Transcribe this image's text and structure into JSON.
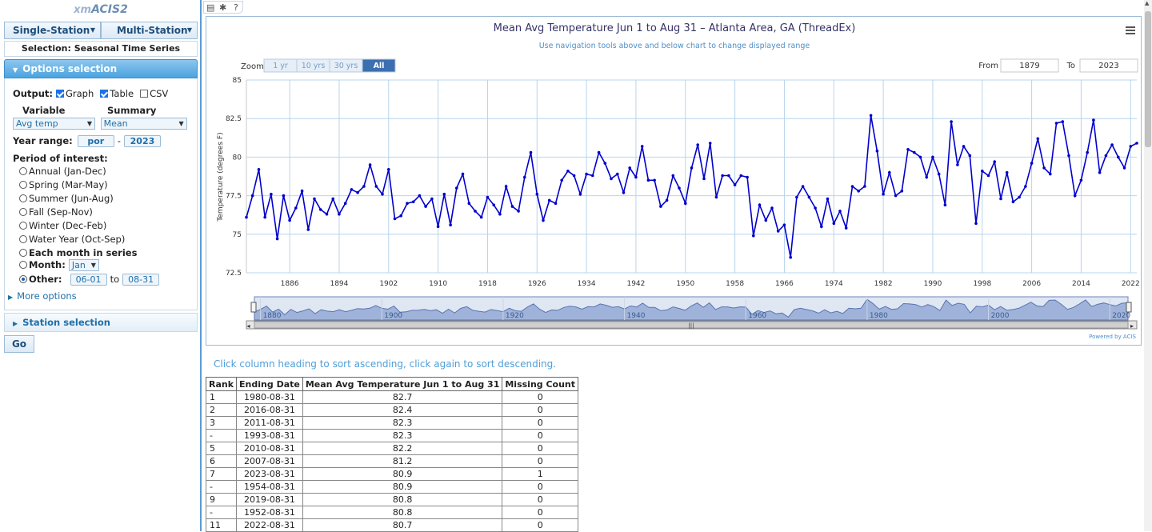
{
  "app": {
    "title_prefix": "xm",
    "title_main": "ACIS2"
  },
  "modes": {
    "single": "Single-Station",
    "multi": "Multi-Station"
  },
  "selection_label": "Selection: Seasonal Time Series",
  "options": {
    "header": "Options selection",
    "output_label": "Output:",
    "output_graph": "Graph",
    "output_table": "Table",
    "output_csv": "CSV",
    "variable_label": "Variable",
    "summary_label": "Summary",
    "variable_value": "Avg temp",
    "summary_value": "Mean",
    "year_range_label": "Year range:",
    "year_start": "por",
    "year_sep": "-",
    "year_end": "2023",
    "period_label": "Period of interest:",
    "periods": [
      "Annual (Jan-Dec)",
      "Spring (Mar-May)",
      "Summer (Jun-Aug)",
      "Fall (Sep-Nov)",
      "Winter (Dec-Feb)",
      "Water Year (Oct-Sep)",
      "Each month in series"
    ],
    "month_label": "Month:",
    "month_value": "Jan",
    "other_label": "Other:",
    "other_start": "06-01",
    "other_to": "to",
    "other_end": "08-31",
    "more_options": "More options"
  },
  "station_selection": "Station selection",
  "go_label": "Go",
  "toolbar": {
    "print_icon": "print-icon",
    "gear_icon": "gear-icon",
    "help": "?"
  },
  "chart_data": {
    "type": "line",
    "title": "Mean Avg Temperature Jun 1 to Aug 31 – Atlanta Area, GA (ThreadEx)",
    "subtitle": "Use navigation tools above and below chart to change displayed range",
    "ylabel": "Temperature (degrees F)",
    "xlabel": "",
    "ylim": [
      72.5,
      85
    ],
    "xlim": [
      1879,
      2023
    ],
    "yticks": [
      "85",
      "82.5",
      "80",
      "77.5",
      "75",
      "72.5"
    ],
    "xticks": [
      "1886",
      "1894",
      "1902",
      "1910",
      "1918",
      "1926",
      "1934",
      "1942",
      "1950",
      "1958",
      "1966",
      "1974",
      "1982",
      "1990",
      "1998",
      "2006",
      "2014",
      "2022"
    ],
    "navigator_ticks": [
      "1880",
      "1900",
      "1920",
      "1940",
      "1960",
      "1980",
      "2000",
      "2020"
    ],
    "grid": true,
    "color": "#0000cc",
    "x_start": 1879,
    "values": [
      76.1,
      77.5,
      79.2,
      76.1,
      77.6,
      74.7,
      77.5,
      75.9,
      76.7,
      77.8,
      75.3,
      77.3,
      76.6,
      76.3,
      77.3,
      76.3,
      77.0,
      77.9,
      77.7,
      78.1,
      79.5,
      78.1,
      77.6,
      79.2,
      76.0,
      76.2,
      77.0,
      77.1,
      77.5,
      76.8,
      77.3,
      75.5,
      77.6,
      75.6,
      78.0,
      78.9,
      77.0,
      76.5,
      76.1,
      77.4,
      76.9,
      76.3,
      78.1,
      76.8,
      76.5,
      78.7,
      80.3,
      77.6,
      75.9,
      77.2,
      77.0,
      78.5,
      79.1,
      78.8,
      77.6,
      78.9,
      78.8,
      80.3,
      79.6,
      78.6,
      78.9,
      77.7,
      79.3,
      78.7,
      80.7,
      78.5,
      78.5,
      76.8,
      77.2,
      78.8,
      78.0,
      77.0,
      79.3,
      80.8,
      78.6,
      80.9,
      77.4,
      78.8,
      78.8,
      78.2,
      78.8,
      78.7,
      74.9,
      76.9,
      75.9,
      76.7,
      75.2,
      75.6,
      73.5,
      77.4,
      78.1,
      77.4,
      76.7,
      75.5,
      77.3,
      75.7,
      76.5,
      75.4,
      78.1,
      77.8,
      78.1,
      82.7,
      80.4,
      77.6,
      79.0,
      77.5,
      77.8,
      80.5,
      80.3,
      80.0,
      78.7,
      80.0,
      78.9,
      76.9,
      82.3,
      79.5,
      80.7,
      80.1,
      75.7,
      79.1,
      78.8,
      79.7,
      77.3,
      79.0,
      77.1,
      77.4,
      78.1,
      79.6,
      81.2,
      79.3,
      78.9,
      82.2,
      82.3,
      80.1,
      77.5,
      78.5,
      80.3,
      82.4,
      79.0,
      80.1,
      80.8,
      80.0,
      79.3,
      80.7,
      80.9
    ]
  },
  "range_selector": {
    "zoom_label": "Zoom",
    "buttons": [
      "1 yr",
      "10 yrs",
      "30 yrs",
      "All"
    ],
    "from_label": "From",
    "from_value": "1879",
    "to_label": "To",
    "to_value": "2023"
  },
  "credit": "Powered by ACIS",
  "table_hint": "Click column heading to sort ascending, click again to sort descending.",
  "table": {
    "headers": [
      "Rank",
      "Ending Date",
      "Mean Avg Temperature Jun 1 to Aug 31",
      "Missing Count"
    ],
    "rows": [
      [
        "1",
        "1980-08-31",
        "82.7",
        "0"
      ],
      [
        "2",
        "2016-08-31",
        "82.4",
        "0"
      ],
      [
        "3",
        "2011-08-31",
        "82.3",
        "0"
      ],
      [
        "-",
        "1993-08-31",
        "82.3",
        "0"
      ],
      [
        "5",
        "2010-08-31",
        "82.2",
        "0"
      ],
      [
        "6",
        "2007-08-31",
        "81.2",
        "0"
      ],
      [
        "7",
        "2023-08-31",
        "80.9",
        "1"
      ],
      [
        "-",
        "1954-08-31",
        "80.9",
        "0"
      ],
      [
        "9",
        "2019-08-31",
        "80.8",
        "0"
      ],
      [
        "-",
        "1952-08-31",
        "80.8",
        "0"
      ],
      [
        "11",
        "2022-08-31",
        "80.7",
        "0"
      ]
    ]
  }
}
